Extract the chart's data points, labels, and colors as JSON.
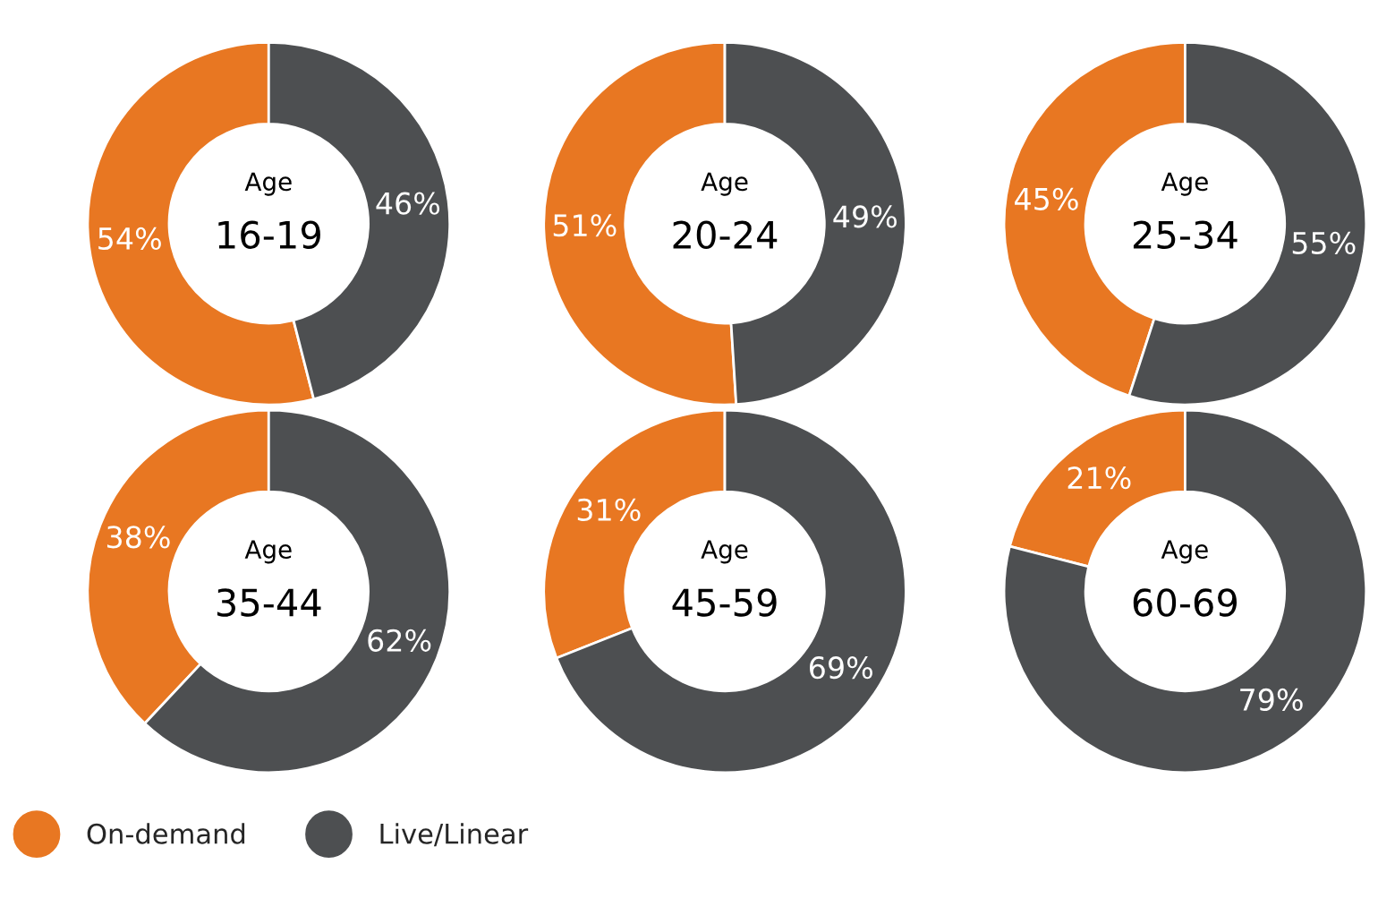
{
  "chart_data": [
    {
      "type": "donut",
      "categories": [
        null,
        null
      ],
      "values": [
        54,
        46
      ],
      "colors": [
        "#e87722",
        "#4d4f51"
      ],
      "value_labels": [
        "54%",
        "46%"
      ],
      "annotations": [
        "Age",
        "16-19"
      ]
    },
    {
      "type": "donut",
      "categories": [
        null,
        null
      ],
      "values": [
        51,
        49
      ],
      "colors": [
        "#e87722",
        "#4d4f51"
      ],
      "value_labels": [
        "51%",
        "49%"
      ],
      "annotations": [
        "Age",
        "20-24"
      ]
    },
    {
      "type": "donut",
      "categories": [
        null,
        null
      ],
      "values": [
        45,
        55
      ],
      "colors": [
        "#e87722",
        "#4d4f51"
      ],
      "value_labels": [
        "45%",
        "55%"
      ],
      "annotations": [
        "Age",
        "25-34"
      ]
    },
    {
      "type": "donut",
      "categories": [
        "On-demand",
        "Live/Linear"
      ],
      "values": [
        38,
        62
      ],
      "colors": [
        "#e87722",
        "#4d4f51"
      ],
      "value_labels": [
        "38%",
        "62%"
      ],
      "annotations": [
        "Age",
        "35-44"
      ],
      "legend": "bottom"
    },
    {
      "type": "donut",
      "categories": [
        null,
        null
      ],
      "values": [
        31,
        69
      ],
      "colors": [
        "#e87722",
        "#4d4f51"
      ],
      "value_labels": [
        "31%",
        "69%"
      ],
      "annotations": [
        "Age",
        "45-59"
      ]
    },
    {
      "type": "donut",
      "categories": [
        null,
        null
      ],
      "values": [
        21,
        79
      ],
      "colors": [
        "#e87722",
        "#4d4f51"
      ],
      "value_labels": [
        "21%",
        "79%"
      ],
      "annotations": [
        "Age",
        "60-69"
      ]
    }
  ]
}
